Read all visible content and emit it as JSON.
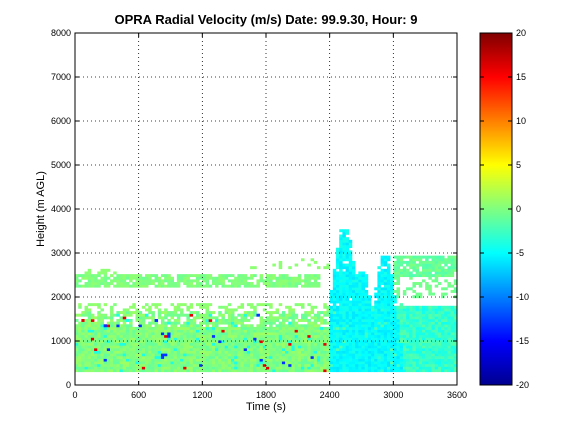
{
  "chart_data": {
    "type": "heatmap",
    "title": "OPRA Radial Velocity (m/s)  Date: 99.9.30, Hour: 9",
    "xlabel": "Time (s)",
    "ylabel": "Height (m AGL)",
    "xlim": [
      0,
      3600
    ],
    "ylim": [
      0,
      8000
    ],
    "xticks": [
      0,
      600,
      1200,
      1800,
      2400,
      3000,
      3600
    ],
    "yticks": [
      0,
      1000,
      2000,
      3000,
      4000,
      5000,
      6000,
      7000,
      8000
    ],
    "grid": true,
    "colorbar": {
      "min": -20,
      "max": 20,
      "ticks": [
        20,
        15,
        10,
        5,
        0,
        -5,
        -10,
        -15,
        -20
      ],
      "colormap": "jet",
      "position": "right"
    },
    "regions": [
      {
        "description": "lower layer near zero velocity",
        "x": [
          0,
          2400
        ],
        "y": [
          300,
          1650
        ],
        "value": 0
      },
      {
        "description": "elevated layer near zero velocity",
        "x": [
          0,
          2300
        ],
        "y": [
          2250,
          2500
        ],
        "value": 0
      },
      {
        "description": "deep convective plume with negative velocity",
        "x": [
          2400,
          3100
        ],
        "y": [
          300,
          3500
        ],
        "value": -5
      },
      {
        "description": "upper layer near zero velocity",
        "x": [
          3000,
          3600
        ],
        "y": [
          2450,
          2950
        ],
        "value": -1
      },
      {
        "description": "lower layer after 2400 s",
        "x": [
          3000,
          3600
        ],
        "y": [
          300,
          1800
        ],
        "value": -3
      }
    ]
  }
}
